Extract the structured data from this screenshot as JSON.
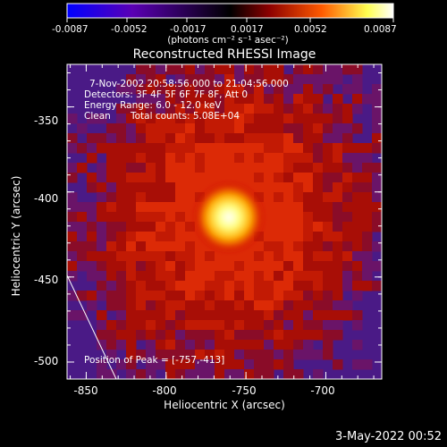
{
  "colorbar": {
    "ticks": [
      "-0.0087",
      "-0.0052",
      "-0.0017",
      "0.0017",
      "0.0052",
      "0.0087"
    ],
    "unit_label": "(photons cm⁻² s⁻¹ asec⁻²)",
    "colors": [
      "#0000ff",
      "#5a00b4",
      "#000000",
      "#8c0000",
      "#ff5a00",
      "#ffff50",
      "#ffffff"
    ]
  },
  "image": {
    "title": "Reconstructed RHESSI Image",
    "time_range": "7-Nov-2002 20:58:56.000 to 21:04:56.000",
    "detectors": "Detectors: 3F 4F 5F 6F 7F 8F, Att 0",
    "energy_range": "Energy Range: 6.0 - 12.0 keV",
    "clean_label": "Clean",
    "total_counts": "Total counts: 5.08E+04",
    "peak_position": "Position of Peak = [-757,-413]"
  },
  "axes": {
    "xlabel": "Heliocentric X (arcsec)",
    "ylabel": "Heliocentric Y (arcsec)",
    "xticks": [
      "-850",
      "-800",
      "-750",
      "-700"
    ],
    "yticks": [
      "-350",
      "-400",
      "-450",
      "-500"
    ]
  },
  "chart_data": {
    "type": "heatmap",
    "title": "Reconstructed RHESSI Image",
    "xlabel": "Heliocentric X (arcsec)",
    "ylabel": "Heliocentric Y (arcsec)",
    "xlim": [
      -862,
      -665
    ],
    "ylim": [
      -510,
      -325
    ],
    "x_ticks": [
      -850,
      -800,
      -750,
      -700
    ],
    "y_ticks": [
      -350,
      -400,
      -450,
      -500
    ],
    "peak": {
      "x": -757,
      "y": -413
    },
    "colorbar_range": [
      -0.0087,
      0.0087
    ],
    "limb_line": {
      "x": [
        -862,
        -822
      ],
      "y": [
        -448,
        -510
      ]
    }
  },
  "footer": {
    "date": "3-May-2022 00:52"
  }
}
